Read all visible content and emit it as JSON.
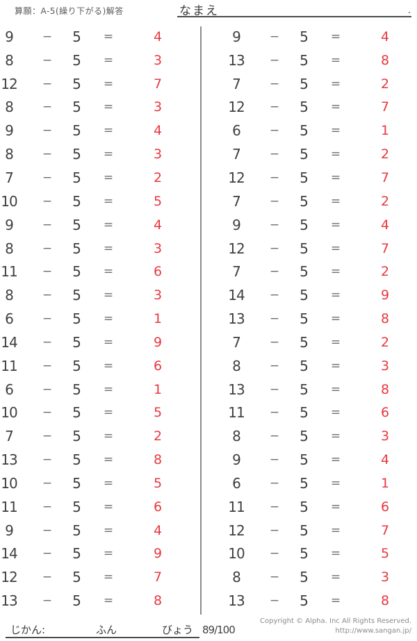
{
  "header": {
    "doc_title": "算願：A-5(繰り下がる)解答",
    "name_label": "なまえ",
    "name_line_period": "."
  },
  "worksheet": {
    "operator": "−",
    "subtrahend": "5",
    "equals": "=",
    "columns": [
      {
        "side": "left",
        "problems": [
          {
            "minuend": "9",
            "answer": "4"
          },
          {
            "minuend": "8",
            "answer": "3"
          },
          {
            "minuend": "12",
            "answer": "7"
          },
          {
            "minuend": "8",
            "answer": "3"
          },
          {
            "minuend": "9",
            "answer": "4"
          },
          {
            "minuend": "8",
            "answer": "3"
          },
          {
            "minuend": "7",
            "answer": "2"
          },
          {
            "minuend": "10",
            "answer": "5"
          },
          {
            "minuend": "9",
            "answer": "4"
          },
          {
            "minuend": "8",
            "answer": "3"
          },
          {
            "minuend": "11",
            "answer": "6"
          },
          {
            "minuend": "8",
            "answer": "3"
          },
          {
            "minuend": "6",
            "answer": "1"
          },
          {
            "minuend": "14",
            "answer": "9"
          },
          {
            "minuend": "11",
            "answer": "6"
          },
          {
            "minuend": "6",
            "answer": "1"
          },
          {
            "minuend": "10",
            "answer": "5"
          },
          {
            "minuend": "7",
            "answer": "2"
          },
          {
            "minuend": "13",
            "answer": "8"
          },
          {
            "minuend": "10",
            "answer": "5"
          },
          {
            "minuend": "11",
            "answer": "6"
          },
          {
            "minuend": "9",
            "answer": "4"
          },
          {
            "minuend": "14",
            "answer": "9"
          },
          {
            "minuend": "12",
            "answer": "7"
          },
          {
            "minuend": "13",
            "answer": "8"
          }
        ]
      },
      {
        "side": "right",
        "problems": [
          {
            "minuend": "9",
            "answer": "4"
          },
          {
            "minuend": "13",
            "answer": "8"
          },
          {
            "minuend": "7",
            "answer": "2"
          },
          {
            "minuend": "12",
            "answer": "7"
          },
          {
            "minuend": "6",
            "answer": "1"
          },
          {
            "minuend": "7",
            "answer": "2"
          },
          {
            "minuend": "12",
            "answer": "7"
          },
          {
            "minuend": "7",
            "answer": "2"
          },
          {
            "minuend": "9",
            "answer": "4"
          },
          {
            "minuend": "12",
            "answer": "7"
          },
          {
            "minuend": "7",
            "answer": "2"
          },
          {
            "minuend": "14",
            "answer": "9"
          },
          {
            "minuend": "13",
            "answer": "8"
          },
          {
            "minuend": "7",
            "answer": "2"
          },
          {
            "minuend": "8",
            "answer": "3"
          },
          {
            "minuend": "13",
            "answer": "8"
          },
          {
            "minuend": "11",
            "answer": "6"
          },
          {
            "minuend": "8",
            "answer": "3"
          },
          {
            "minuend": "9",
            "answer": "4"
          },
          {
            "minuend": "6",
            "answer": "1"
          },
          {
            "minuend": "11",
            "answer": "6"
          },
          {
            "minuend": "12",
            "answer": "7"
          },
          {
            "minuend": "10",
            "answer": "5"
          },
          {
            "minuend": "8",
            "answer": "3"
          },
          {
            "minuend": "13",
            "answer": "8"
          }
        ]
      }
    ]
  },
  "footer": {
    "time_label": "じかん:",
    "minutes_label": "ふん",
    "seconds_label": "びょう",
    "score": "89/100",
    "copyright_line1": "Copyright © Alpha. Inc All Rights Reserved.",
    "copyright_line2": "http://www.sangan.jp/"
  },
  "colors": {
    "answer_red": "#e8383f",
    "problem_text": "#3f3f3f",
    "operator_gray": "#6e6e6e",
    "divider_gray": "#8c8c8c"
  }
}
